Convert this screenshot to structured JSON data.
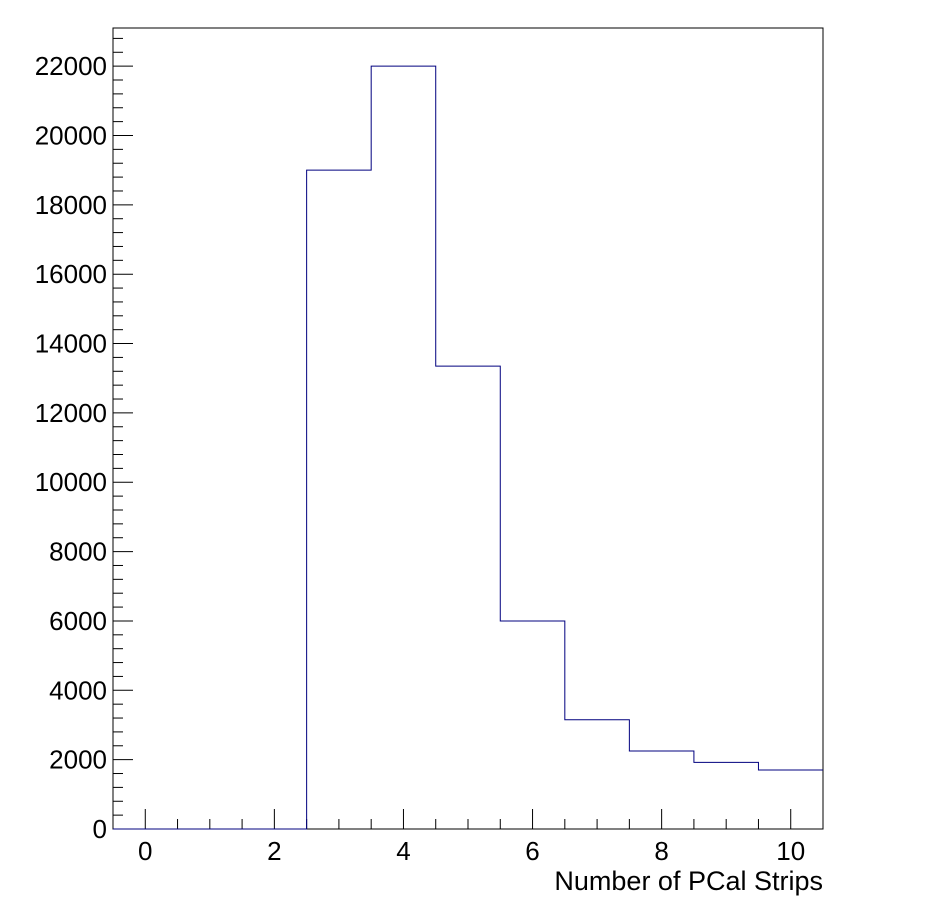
{
  "chart_data": {
    "type": "histogram",
    "title": "",
    "xlabel": "Number of PCal Strips",
    "ylabel": "",
    "xlim": [
      -0.5,
      10.5
    ],
    "ylim": [
      0,
      23100
    ],
    "x_ticks": [
      0,
      2,
      4,
      6,
      8,
      10
    ],
    "y_ticks": [
      0,
      2000,
      4000,
      6000,
      8000,
      10000,
      12000,
      14000,
      16000,
      18000,
      20000,
      22000
    ],
    "bin_width": 1,
    "bin_centers": [
      0,
      1,
      2,
      3,
      4,
      5,
      6,
      7,
      8,
      9,
      10
    ],
    "values": [
      0,
      0,
      0,
      19000,
      22000,
      13350,
      6000,
      3150,
      2250,
      1920,
      1700
    ],
    "line_color": "#00007f",
    "grid": false
  }
}
